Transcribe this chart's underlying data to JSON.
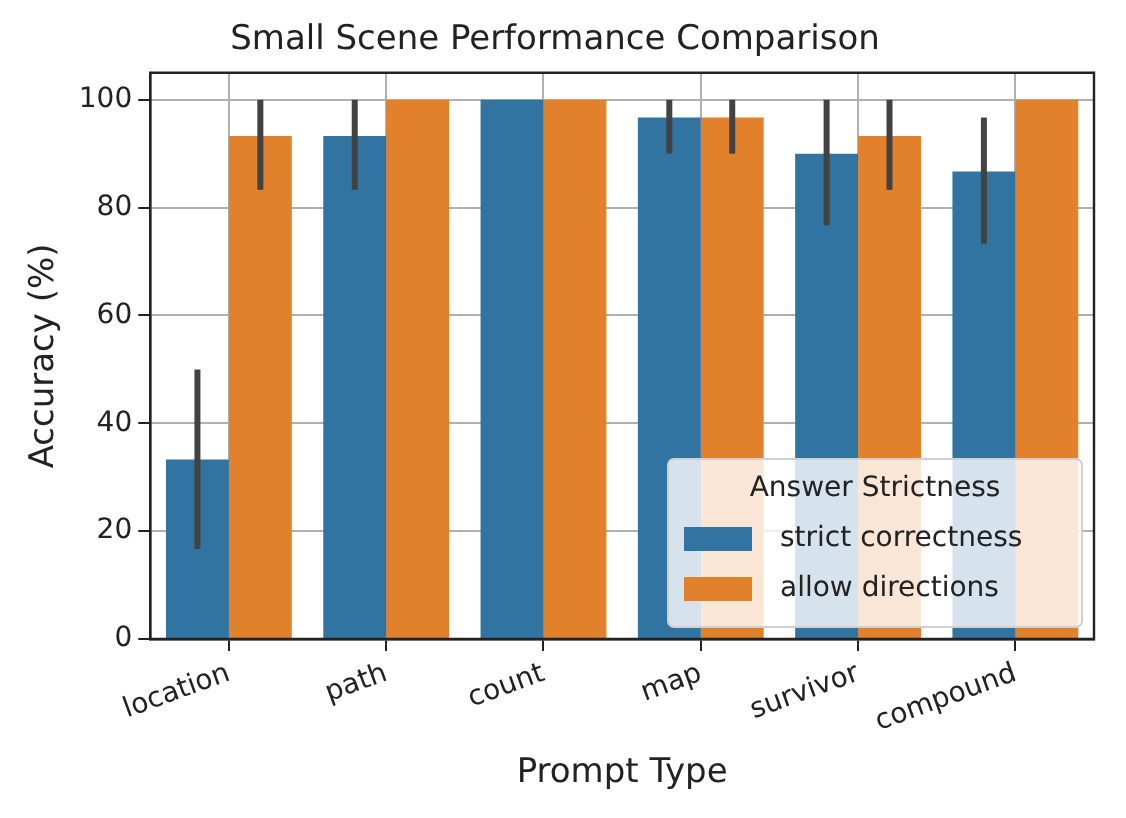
{
  "chart_data": {
    "type": "bar",
    "title": "Small Scene Performance Comparison",
    "xlabel": "Prompt Type",
    "ylabel": "Accuracy (%)",
    "legend_title": "Answer Strictness",
    "categories": [
      "location",
      "path",
      "count",
      "map",
      "survivor",
      "compound"
    ],
    "series": [
      {
        "name": "strict correctness",
        "color": "#3274a1",
        "values": [
          33.3,
          93.3,
          100,
          96.7,
          90,
          86.7
        ],
        "errors": [
          [
            16.7,
            50
          ],
          [
            83.3,
            100
          ],
          null,
          [
            90,
            100
          ],
          [
            76.7,
            100
          ],
          [
            73.3,
            96.7
          ]
        ]
      },
      {
        "name": "allow directions",
        "color": "#e1812c",
        "values": [
          93.3,
          100,
          100,
          96.7,
          93.3,
          100
        ],
        "errors": [
          [
            83.3,
            100
          ],
          null,
          null,
          [
            90,
            100
          ],
          [
            83.3,
            100
          ],
          null
        ]
      }
    ],
    "ylim": [
      0,
      105
    ],
    "yticks": [
      0,
      20,
      40,
      60,
      80,
      100
    ],
    "grid": true,
    "legend": "bottom right"
  }
}
